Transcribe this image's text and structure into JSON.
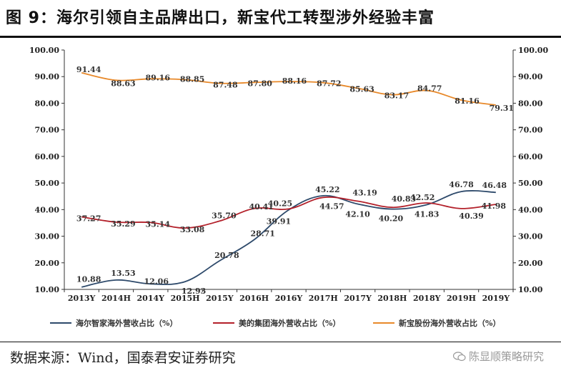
{
  "title": "图 9：海尔引领自主品牌出口，新宝代工转型涉外经验丰富",
  "source": "数据来源：Wind，国泰君安证券研究",
  "watermark": "陈显顺策略研究",
  "chart_data": {
    "type": "line",
    "categories": [
      "2013Y",
      "2014H",
      "2014Y",
      "2015H",
      "2015Y",
      "2016H",
      "2016Y",
      "2017H",
      "2017Y",
      "2018H",
      "2018Y",
      "2019H",
      "2019Y"
    ],
    "ylim": [
      10,
      100
    ],
    "yticks": [
      "10.00",
      "20.00",
      "30.00",
      "40.00",
      "50.00",
      "60.00",
      "70.00",
      "80.00",
      "90.00",
      "100.00"
    ],
    "grid": false,
    "legend": "bottom",
    "series": [
      {
        "name": "海尔智家海外营收占比（%）",
        "color": "#2e4a6b",
        "values": [
          10.88,
          13.53,
          12.06,
          12.93,
          20.78,
          28.71,
          39.91,
          45.22,
          42.1,
          40.2,
          41.83,
          46.78,
          46.48
        ],
        "labels": [
          "10.88",
          "13.53",
          "12.06",
          "12.93",
          "20.78",
          "28.71",
          "39.91",
          "45.22",
          "42.10",
          "40.20",
          "41.83",
          "46.78",
          "46.48"
        ]
      },
      {
        "name": "美的集团海外营收占比（%）",
        "color": "#b3202a",
        "values": [
          37.27,
          35.29,
          35.14,
          33.08,
          35.7,
          40.41,
          40.25,
          44.57,
          43.19,
          40.83,
          42.52,
          40.39,
          41.98
        ],
        "labels": [
          "37.27",
          "35.29",
          "35.14",
          "33.08",
          "35.70",
          "40.41",
          "40.25",
          "44.57",
          "43.19",
          "40.83",
          "42.52",
          "40.39",
          "41.98"
        ]
      },
      {
        "name": "新宝股份海外营收占比（%）",
        "color": "#e8892a",
        "values": [
          91.44,
          88.63,
          89.16,
          88.85,
          87.48,
          87.8,
          88.16,
          87.72,
          85.63,
          83.17,
          84.77,
          81.16,
          79.31
        ],
        "labels": [
          "91.44",
          "88.63",
          "89.16",
          "88.85",
          "87.48",
          "87.80",
          "88.16",
          "87.72",
          "85.63",
          "83.17",
          "84.77",
          "81.16",
          "79.31"
        ]
      }
    ]
  }
}
